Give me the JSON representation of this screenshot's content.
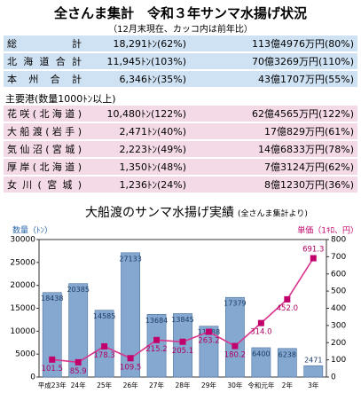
{
  "header": {
    "title": "全さんま集計　令和３年サンマ水揚げ状況",
    "subtitle": "（12月末現在、カッコ内は前年比）"
  },
  "summary": {
    "rows": [
      [
        "総計",
        "18,291ﾄﾝ(62%)",
        "113億4976万円(80%)"
      ],
      [
        "北海道合計",
        "11,945ﾄﾝ(103%)",
        "70億3269万円(110%)"
      ],
      [
        "本州合計",
        "6,346ﾄﾝ(35%)",
        "43億1707万円(55%)"
      ]
    ]
  },
  "ports": {
    "heading": "主要港(数量1000ﾄﾝ以上)",
    "rows": [
      [
        "花咲(北海道)",
        "10,480ﾄﾝ(122%)",
        "62億4565万円(122%)"
      ],
      [
        "大船渡(岩手)",
        "2,471ﾄﾝ(40%)",
        "17億829万円(61%)"
      ],
      [
        "気仙沼(宮城)",
        "2,223ﾄﾝ(49%)",
        "14億6833万円(78%)"
      ],
      [
        "厚岸(北海道)",
        "1,350ﾄﾝ(48%)",
        "7億3124万円(62%)"
      ],
      [
        "女川(宮城)",
        "1,236ﾄﾝ(24%)",
        "8億1230万円(36%)"
      ]
    ]
  },
  "chart_data": {
    "type": "bar+line",
    "title": "大船渡のサンマ水揚げ実績",
    "note": "(全さんま集計より)",
    "y_label": "数量（ﾄﾝ）",
    "y2_label": "単価（1ｷﾛ、円）",
    "categories": [
      "平成23年",
      "24年",
      "25年",
      "26年",
      "27年",
      "28年",
      "29年",
      "30年",
      "令和元年",
      "2年",
      "3年"
    ],
    "series": [
      {
        "type": "bar",
        "color": "#84a8d0",
        "values": [
          18438,
          20385,
          14585,
          27133,
          13684,
          13845,
          11088,
          17379,
          6400,
          6238,
          2471
        ]
      },
      {
        "type": "line",
        "axis": "y2",
        "color": "#d9358c",
        "values": [
          101.5,
          85.9,
          178.3,
          109.5,
          215.2,
          205.1,
          263.2,
          180.2,
          314.0,
          452.0,
          691.3
        ],
        "value_labels": [
          "101.5",
          "85.9",
          "178.3",
          "109.5",
          "215.2",
          "205.1",
          "263.2",
          "180.2",
          "314.0",
          "452.0",
          "691.3"
        ]
      }
    ],
    "ylim": [
      0,
      30000
    ],
    "yticks": [
      0,
      5000,
      10000,
      15000,
      20000,
      25000,
      30000
    ],
    "y2lim": [
      0,
      800
    ],
    "y2ticks": [
      0,
      100,
      200,
      300,
      400,
      500,
      600,
      700,
      800
    ]
  }
}
